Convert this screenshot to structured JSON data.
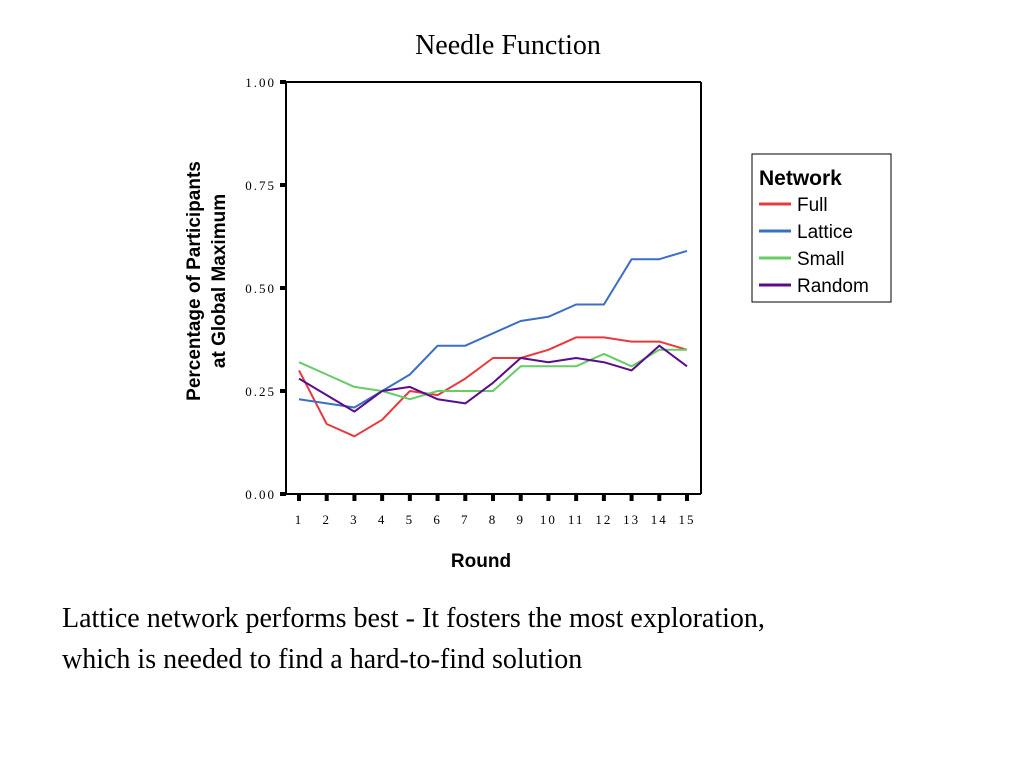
{
  "caption": {
    "line1": "Lattice network performs best - It fosters the most exploration,",
    "line2": "which is needed to find a hard-to-find solution"
  },
  "chart_data": {
    "type": "line",
    "title": "Needle Function",
    "xlabel": "Round",
    "ylabel_line1": "Percentage of Participants",
    "ylabel_line2": "at Global Maximum",
    "ylim": [
      0,
      1
    ],
    "y_ticks": [
      "0.00",
      "0.25",
      "0.50",
      "0.75",
      "1.00"
    ],
    "y_tick_values": [
      0,
      0.25,
      0.5,
      0.75,
      1.0
    ],
    "x": [
      1,
      2,
      3,
      4,
      5,
      6,
      7,
      8,
      9,
      10,
      11,
      12,
      13,
      14,
      15
    ],
    "x_ticks": [
      "1",
      "2",
      "3",
      "4",
      "5",
      "6",
      "7",
      "8",
      "9",
      "10",
      "11",
      "12",
      "13",
      "14",
      "15"
    ],
    "grid": false,
    "legend": {
      "title": "Network",
      "placement": "right"
    },
    "series": [
      {
        "name": "Full",
        "color": "#e8393c",
        "values": [
          0.3,
          0.17,
          0.14,
          0.18,
          0.25,
          0.24,
          0.28,
          0.33,
          0.33,
          0.35,
          0.38,
          0.38,
          0.37,
          0.37,
          0.35
        ]
      },
      {
        "name": "Lattice",
        "color": "#3a6fc4",
        "values": [
          0.23,
          0.22,
          0.21,
          0.25,
          0.29,
          0.36,
          0.36,
          0.39,
          0.42,
          0.43,
          0.46,
          0.46,
          0.57,
          0.57,
          0.59
        ]
      },
      {
        "name": "Small",
        "color": "#66cc66",
        "values": [
          0.32,
          0.29,
          0.26,
          0.25,
          0.23,
          0.25,
          0.25,
          0.25,
          0.31,
          0.31,
          0.31,
          0.34,
          0.31,
          0.35,
          0.35
        ]
      },
      {
        "name": "Random",
        "color": "#5b0c8c",
        "values": [
          0.28,
          0.24,
          0.2,
          0.25,
          0.26,
          0.23,
          0.22,
          0.27,
          0.33,
          0.32,
          0.33,
          0.32,
          0.3,
          0.36,
          0.31
        ]
      }
    ]
  }
}
